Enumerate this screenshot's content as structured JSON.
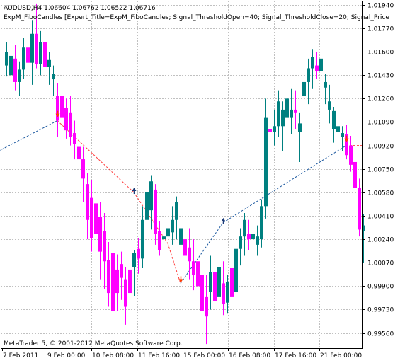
{
  "header": {
    "symbol_line": "AUDUSD,H4  1.06604 1.06762 1.06522 1.06716",
    "indicator_line": "ExpM_FiboCandles [Expert_Title=ExpM_FiboCandles; Signal_ThresholdOpen=40; Signal_ThresholdClose=20; Signal_Price"
  },
  "footer": {
    "copyright": "MetaTrader 5, © 2001-2012 MetaQuotes Software Corp."
  },
  "colors": {
    "bull": "#008080",
    "bear": "#ff00ff",
    "grid": "#c0c0c0",
    "zigzag_up": "#1e5aa0",
    "zigzag_down": "#ff3c3c",
    "arrow_sell": "#ff3c00",
    "arrow_buy": "#1e3c78"
  },
  "chart_data": {
    "type": "candlestick",
    "title": "",
    "y_ticks": [
      "1.01940",
      "1.01770",
      "1.01600",
      "1.01430",
      "1.01260",
      "1.01090",
      "1.00920",
      "1.00750",
      "1.00580",
      "1.00410",
      "1.00240",
      "1.00070",
      "0.99900",
      "0.99730",
      "0.99560"
    ],
    "x_ticks": [
      "7 Feb 2011",
      "9 Feb 00:00",
      "10 Feb 08:00",
      "11 Feb 16:00",
      "15 Feb 00:00",
      "16 Feb 08:00",
      "17 Feb 16:00",
      "21 Feb 00:00"
    ],
    "ylim": [
      0.9945,
      1.0197
    ],
    "grid": true,
    "candles": [
      {
        "o": 1.015,
        "h": 1.0167,
        "l": 1.0142,
        "c": 1.016
      },
      {
        "o": 1.0143,
        "h": 1.0162,
        "l": 1.0135,
        "c": 1.0157
      },
      {
        "o": 1.0155,
        "h": 1.0165,
        "l": 1.0132,
        "c": 1.0138
      },
      {
        "o": 1.0138,
        "h": 1.0153,
        "l": 1.0128,
        "c": 1.0147
      },
      {
        "o": 1.0147,
        "h": 1.017,
        "l": 1.014,
        "c": 1.0163
      },
      {
        "o": 1.0163,
        "h": 1.0187,
        "l": 1.0146,
        "c": 1.0152
      },
      {
        "o": 1.0152,
        "h": 1.0183,
        "l": 1.0136,
        "c": 1.0173
      },
      {
        "o": 1.0173,
        "h": 1.0195,
        "l": 1.0148,
        "c": 1.0151
      },
      {
        "o": 1.0151,
        "h": 1.0175,
        "l": 1.0143,
        "c": 1.0167
      },
      {
        "o": 1.0167,
        "h": 1.018,
        "l": 1.0148,
        "c": 1.0149
      },
      {
        "o": 1.0149,
        "h": 1.016,
        "l": 1.0136,
        "c": 1.0154
      },
      {
        "o": 1.014,
        "h": 1.015,
        "l": 1.0128,
        "c": 1.0144
      },
      {
        "o": 1.0128,
        "h": 1.0137,
        "l": 1.0098,
        "c": 1.011
      },
      {
        "o": 1.0128,
        "h": 1.0134,
        "l": 1.0104,
        "c": 1.0112
      },
      {
        "o": 1.0119,
        "h": 1.0126,
        "l": 1.0097,
        "c": 1.0103
      },
      {
        "o": 1.0116,
        "h": 1.0128,
        "l": 1.0092,
        "c": 1.0098
      },
      {
        "o": 1.0101,
        "h": 1.011,
        "l": 1.0082,
        "c": 1.0093
      },
      {
        "o": 1.0091,
        "h": 1.01,
        "l": 1.0058,
        "c": 1.0082
      },
      {
        "o": 1.0082,
        "h": 1.0091,
        "l": 1.0051,
        "c": 1.0068
      },
      {
        "o": 1.0064,
        "h": 1.0072,
        "l": 1.0024,
        "c": 1.0038
      },
      {
        "o": 1.0054,
        "h": 1.0067,
        "l": 1.0015,
        "c": 1.0025
      },
      {
        "o": 1.005,
        "h": 1.0063,
        "l": 1.0008,
        "c": 1.0028
      },
      {
        "o": 1.004,
        "h": 1.0051,
        "l": 0.9995,
        "c": 1.0015
      },
      {
        "o": 1.003,
        "h": 1.0043,
        "l": 0.9988,
        "c": 1.0008
      },
      {
        "o": 1.0009,
        "h": 1.0022,
        "l": 0.9975,
        "c": 0.9985
      },
      {
        "o": 1.0014,
        "h": 1.0024,
        "l": 0.9965,
        "c": 0.9972
      },
      {
        "o": 1.0002,
        "h": 1.0013,
        "l": 0.9972,
        "c": 0.9985
      },
      {
        "o": 1.0006,
        "h": 1.0015,
        "l": 0.998,
        "c": 0.9996
      },
      {
        "o": 0.9995,
        "h": 1.0004,
        "l": 0.9962,
        "c": 0.9975
      },
      {
        "o": 1.0002,
        "h": 1.0013,
        "l": 0.9978,
        "c": 0.9985
      },
      {
        "o": 1.0004,
        "h": 1.0016,
        "l": 0.9983,
        "c": 1.0014
      },
      {
        "o": 1.0017,
        "h": 1.0025,
        "l": 0.9999,
        "c": 1.001
      },
      {
        "o": 1.001,
        "h": 1.0048,
        "l": 1.0003,
        "c": 1.0038
      },
      {
        "o": 1.0038,
        "h": 1.0065,
        "l": 1.0024,
        "c": 1.0058
      },
      {
        "o": 1.0045,
        "h": 1.007,
        "l": 1.0031,
        "c": 1.0066
      },
      {
        "o": 1.006,
        "h": 1.0064,
        "l": 1.002,
        "c": 1.0028
      },
      {
        "o": 1.003,
        "h": 1.0037,
        "l": 1.0012,
        "c": 1.0016
      },
      {
        "o": 1.0024,
        "h": 1.0034,
        "l": 1.0006,
        "c": 1.0026
      },
      {
        "o": 1.0026,
        "h": 1.0036,
        "l": 1.0016,
        "c": 1.0032
      },
      {
        "o": 1.0029,
        "h": 1.0048,
        "l": 1.002,
        "c": 1.0038
      },
      {
        "o": 1.0038,
        "h": 1.0055,
        "l": 1.0024,
        "c": 1.0051
      },
      {
        "o": 1.002,
        "h": 1.0038,
        "l": 1.0008,
        "c": 1.0032
      },
      {
        "o": 1.0024,
        "h": 1.004,
        "l": 1.0003,
        "c": 1.0012
      },
      {
        "o": 1.0018,
        "h": 1.0032,
        "l": 0.9995,
        "c": 1.0008
      },
      {
        "o": 1.0008,
        "h": 1.0024,
        "l": 0.9987,
        "c": 0.9998
      },
      {
        "o": 1.0008,
        "h": 1.0024,
        "l": 0.9975,
        "c": 0.999
      },
      {
        "o": 0.9998,
        "h": 1.001,
        "l": 0.9957,
        "c": 0.9972
      },
      {
        "o": 0.9982,
        "h": 0.9998,
        "l": 0.9948,
        "c": 0.9968
      },
      {
        "o": 0.9986,
        "h": 1.0012,
        "l": 0.9973,
        "c": 1.0
      },
      {
        "o": 1.0,
        "h": 1.001,
        "l": 0.9966,
        "c": 0.9979
      },
      {
        "o": 0.9982,
        "h": 1.0013,
        "l": 0.9975,
        "c": 1.0004
      },
      {
        "o": 0.9992,
        "h": 1.0008,
        "l": 0.9969,
        "c": 0.9977
      },
      {
        "o": 0.9978,
        "h": 0.9998,
        "l": 0.997,
        "c": 0.9993
      },
      {
        "o": 1.0003,
        "h": 1.0016,
        "l": 0.9972,
        "c": 0.9982
      },
      {
        "o": 0.9986,
        "h": 1.0021,
        "l": 0.9977,
        "c": 1.0017
      },
      {
        "o": 1.0017,
        "h": 1.0032,
        "l": 1.0005,
        "c": 1.0026
      },
      {
        "o": 1.0026,
        "h": 1.0043,
        "l": 1.0012,
        "c": 1.0038
      },
      {
        "o": 1.0028,
        "h": 1.0038,
        "l": 1.0016,
        "c": 1.0024
      },
      {
        "o": 1.0024,
        "h": 1.0034,
        "l": 1.0014,
        "c": 1.0028
      },
      {
        "o": 1.002,
        "h": 1.0034,
        "l": 1.0012,
        "c": 1.0026
      },
      {
        "o": 1.0024,
        "h": 1.0053,
        "l": 1.0018,
        "c": 1.0048
      },
      {
        "o": 1.0048,
        "h": 1.0126,
        "l": 1.0039,
        "c": 1.0112
      },
      {
        "o": 1.0104,
        "h": 1.0116,
        "l": 1.0078,
        "c": 1.0102
      },
      {
        "o": 1.0102,
        "h": 1.0118,
        "l": 1.0092,
        "c": 1.0106
      },
      {
        "o": 1.0106,
        "h": 1.0132,
        "l": 1.0098,
        "c": 1.0124
      },
      {
        "o": 1.0106,
        "h": 1.0124,
        "l": 1.0088,
        "c": 1.0118
      },
      {
        "o": 1.0112,
        "h": 1.0129,
        "l": 1.0089,
        "c": 1.0126
      },
      {
        "o": 1.0112,
        "h": 1.0133,
        "l": 1.01,
        "c": 1.0118
      },
      {
        "o": 1.0118,
        "h": 1.0132,
        "l": 1.0104,
        "c": 1.0116
      },
      {
        "o": 1.0102,
        "h": 1.0116,
        "l": 1.008,
        "c": 1.0108
      },
      {
        "o": 1.0128,
        "h": 1.0145,
        "l": 1.0104,
        "c": 1.0138
      },
      {
        "o": 1.0138,
        "h": 1.0155,
        "l": 1.0122,
        "c": 1.0148
      },
      {
        "o": 1.0148,
        "h": 1.0162,
        "l": 1.0133,
        "c": 1.0156
      },
      {
        "o": 1.015,
        "h": 1.016,
        "l": 1.014,
        "c": 1.0146
      },
      {
        "o": 1.0146,
        "h": 1.0162,
        "l": 1.0136,
        "c": 1.0155
      },
      {
        "o": 1.0134,
        "h": 1.0144,
        "l": 1.0122,
        "c": 1.0138
      },
      {
        "o": 1.0118,
        "h": 1.0136,
        "l": 1.0108,
        "c": 1.0124
      },
      {
        "o": 1.0104,
        "h": 1.012,
        "l": 1.0094,
        "c": 1.0117
      },
      {
        "o": 1.0102,
        "h": 1.0112,
        "l": 1.0096,
        "c": 1.0106
      },
      {
        "o": 1.0098,
        "h": 1.0106,
        "l": 1.0088,
        "c": 1.0101
      },
      {
        "o": 1.01,
        "h": 1.0107,
        "l": 1.0082,
        "c": 1.0085
      },
      {
        "o": 1.0092,
        "h": 1.0099,
        "l": 1.0073,
        "c": 1.0078
      },
      {
        "o": 1.008,
        "h": 1.0086,
        "l": 1.0046,
        "c": 1.0061
      },
      {
        "o": 1.0061,
        "h": 1.0068,
        "l": 1.0026,
        "c": 1.0031
      },
      {
        "o": 1.003,
        "h": 1.0042,
        "l": 1.0007,
        "c": 1.0034
      }
    ],
    "zigzag": [
      {
        "i": -10,
        "p": 1.0075,
        "dir": "up"
      },
      {
        "i": 12,
        "p": 1.011,
        "dir": "down"
      },
      {
        "i": 30,
        "p": 1.0058,
        "dir": "down"
      },
      {
        "i": 38,
        "p": 1.0021,
        "dir": "down"
      },
      {
        "i": 41,
        "p": 0.9992,
        "dir": "up"
      },
      {
        "i": 51,
        "p": 1.0036,
        "dir": "up"
      },
      {
        "i": 80,
        "p": 1.0092,
        "dir": "down"
      },
      {
        "i": 84,
        "p": 1.0092,
        "dir": "none"
      }
    ],
    "signals": [
      {
        "i": 12,
        "p": 1.0112,
        "type": "sell"
      },
      {
        "i": 30,
        "p": 1.0062,
        "type": "buy"
      },
      {
        "i": 41,
        "p": 0.9992,
        "type": "sell"
      },
      {
        "i": 51,
        "p": 1.004,
        "type": "buy"
      },
      {
        "i": 80,
        "p": 1.0094,
        "type": "sell"
      }
    ]
  }
}
